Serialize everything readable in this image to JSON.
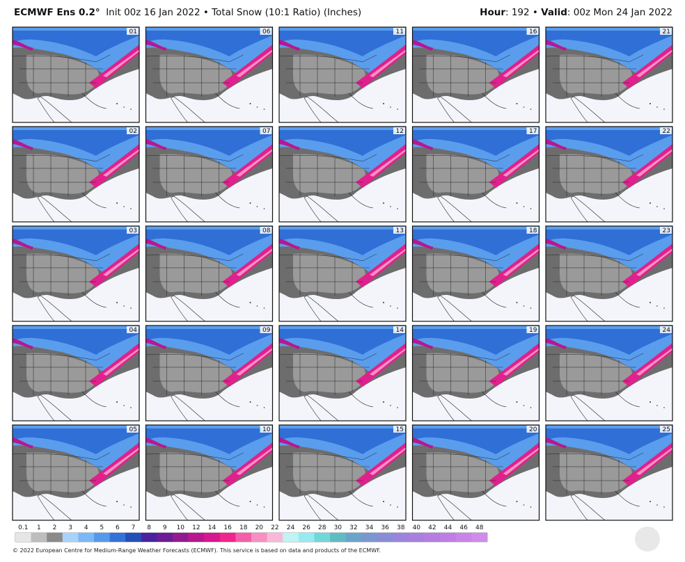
{
  "header": {
    "model": "ECMWF Ens 0.2°",
    "subtitle": "Init 00z 16 Jan 2022 • Total Snow (10:1 Ratio) (Inches)",
    "hour_label": "Hour",
    "hour_value": ": 192 •",
    "valid_label": "Valid",
    "valid_value": ": 00z Mon 24 Jan 2022"
  },
  "panels": [
    {
      "member": "01"
    },
    {
      "member": "02"
    },
    {
      "member": "03"
    },
    {
      "member": "04"
    },
    {
      "member": "05"
    },
    {
      "member": "06"
    },
    {
      "member": "07"
    },
    {
      "member": "08"
    },
    {
      "member": "09"
    },
    {
      "member": "10"
    },
    {
      "member": "11"
    },
    {
      "member": "12"
    },
    {
      "member": "13"
    },
    {
      "member": "14"
    },
    {
      "member": "15"
    },
    {
      "member": "16"
    },
    {
      "member": "17"
    },
    {
      "member": "18"
    },
    {
      "member": "19"
    },
    {
      "member": "20"
    },
    {
      "member": "21"
    },
    {
      "member": "22"
    },
    {
      "member": "23"
    },
    {
      "member": "24"
    },
    {
      "member": "25"
    }
  ],
  "legend": {
    "levels": [
      0.1,
      1,
      2,
      3,
      4,
      5,
      6,
      7,
      8,
      9,
      10,
      12,
      14,
      16,
      18,
      20,
      22,
      24,
      26,
      28,
      30,
      32,
      34,
      36,
      38,
      40,
      42,
      44,
      46,
      48
    ],
    "colors": [
      "#e6e6e6",
      "#bdbdbd",
      "#8a8a8a",
      "#a8d2fb",
      "#7cb8f5",
      "#5599ec",
      "#3373d8",
      "#2250b8",
      "#4a22a0",
      "#6c1c98",
      "#921a90",
      "#b8178f",
      "#d8168e",
      "#f0248c",
      "#f55ea8",
      "#f78fc2",
      "#f9b8d8",
      "#bff3f6",
      "#94ebf0",
      "#70d8d8",
      "#5fbcc4",
      "#6aa4ca",
      "#7a97d0",
      "#8a8cd6",
      "#9b84db",
      "#a97fe0",
      "#b57de3",
      "#bf7de6",
      "#c884e8",
      "#d08cea"
    ]
  },
  "footer": "© 2022 European Centre for Medium-Range Weather Forecasts (ECMWF). This service is based on data and products of the ECMWF."
}
